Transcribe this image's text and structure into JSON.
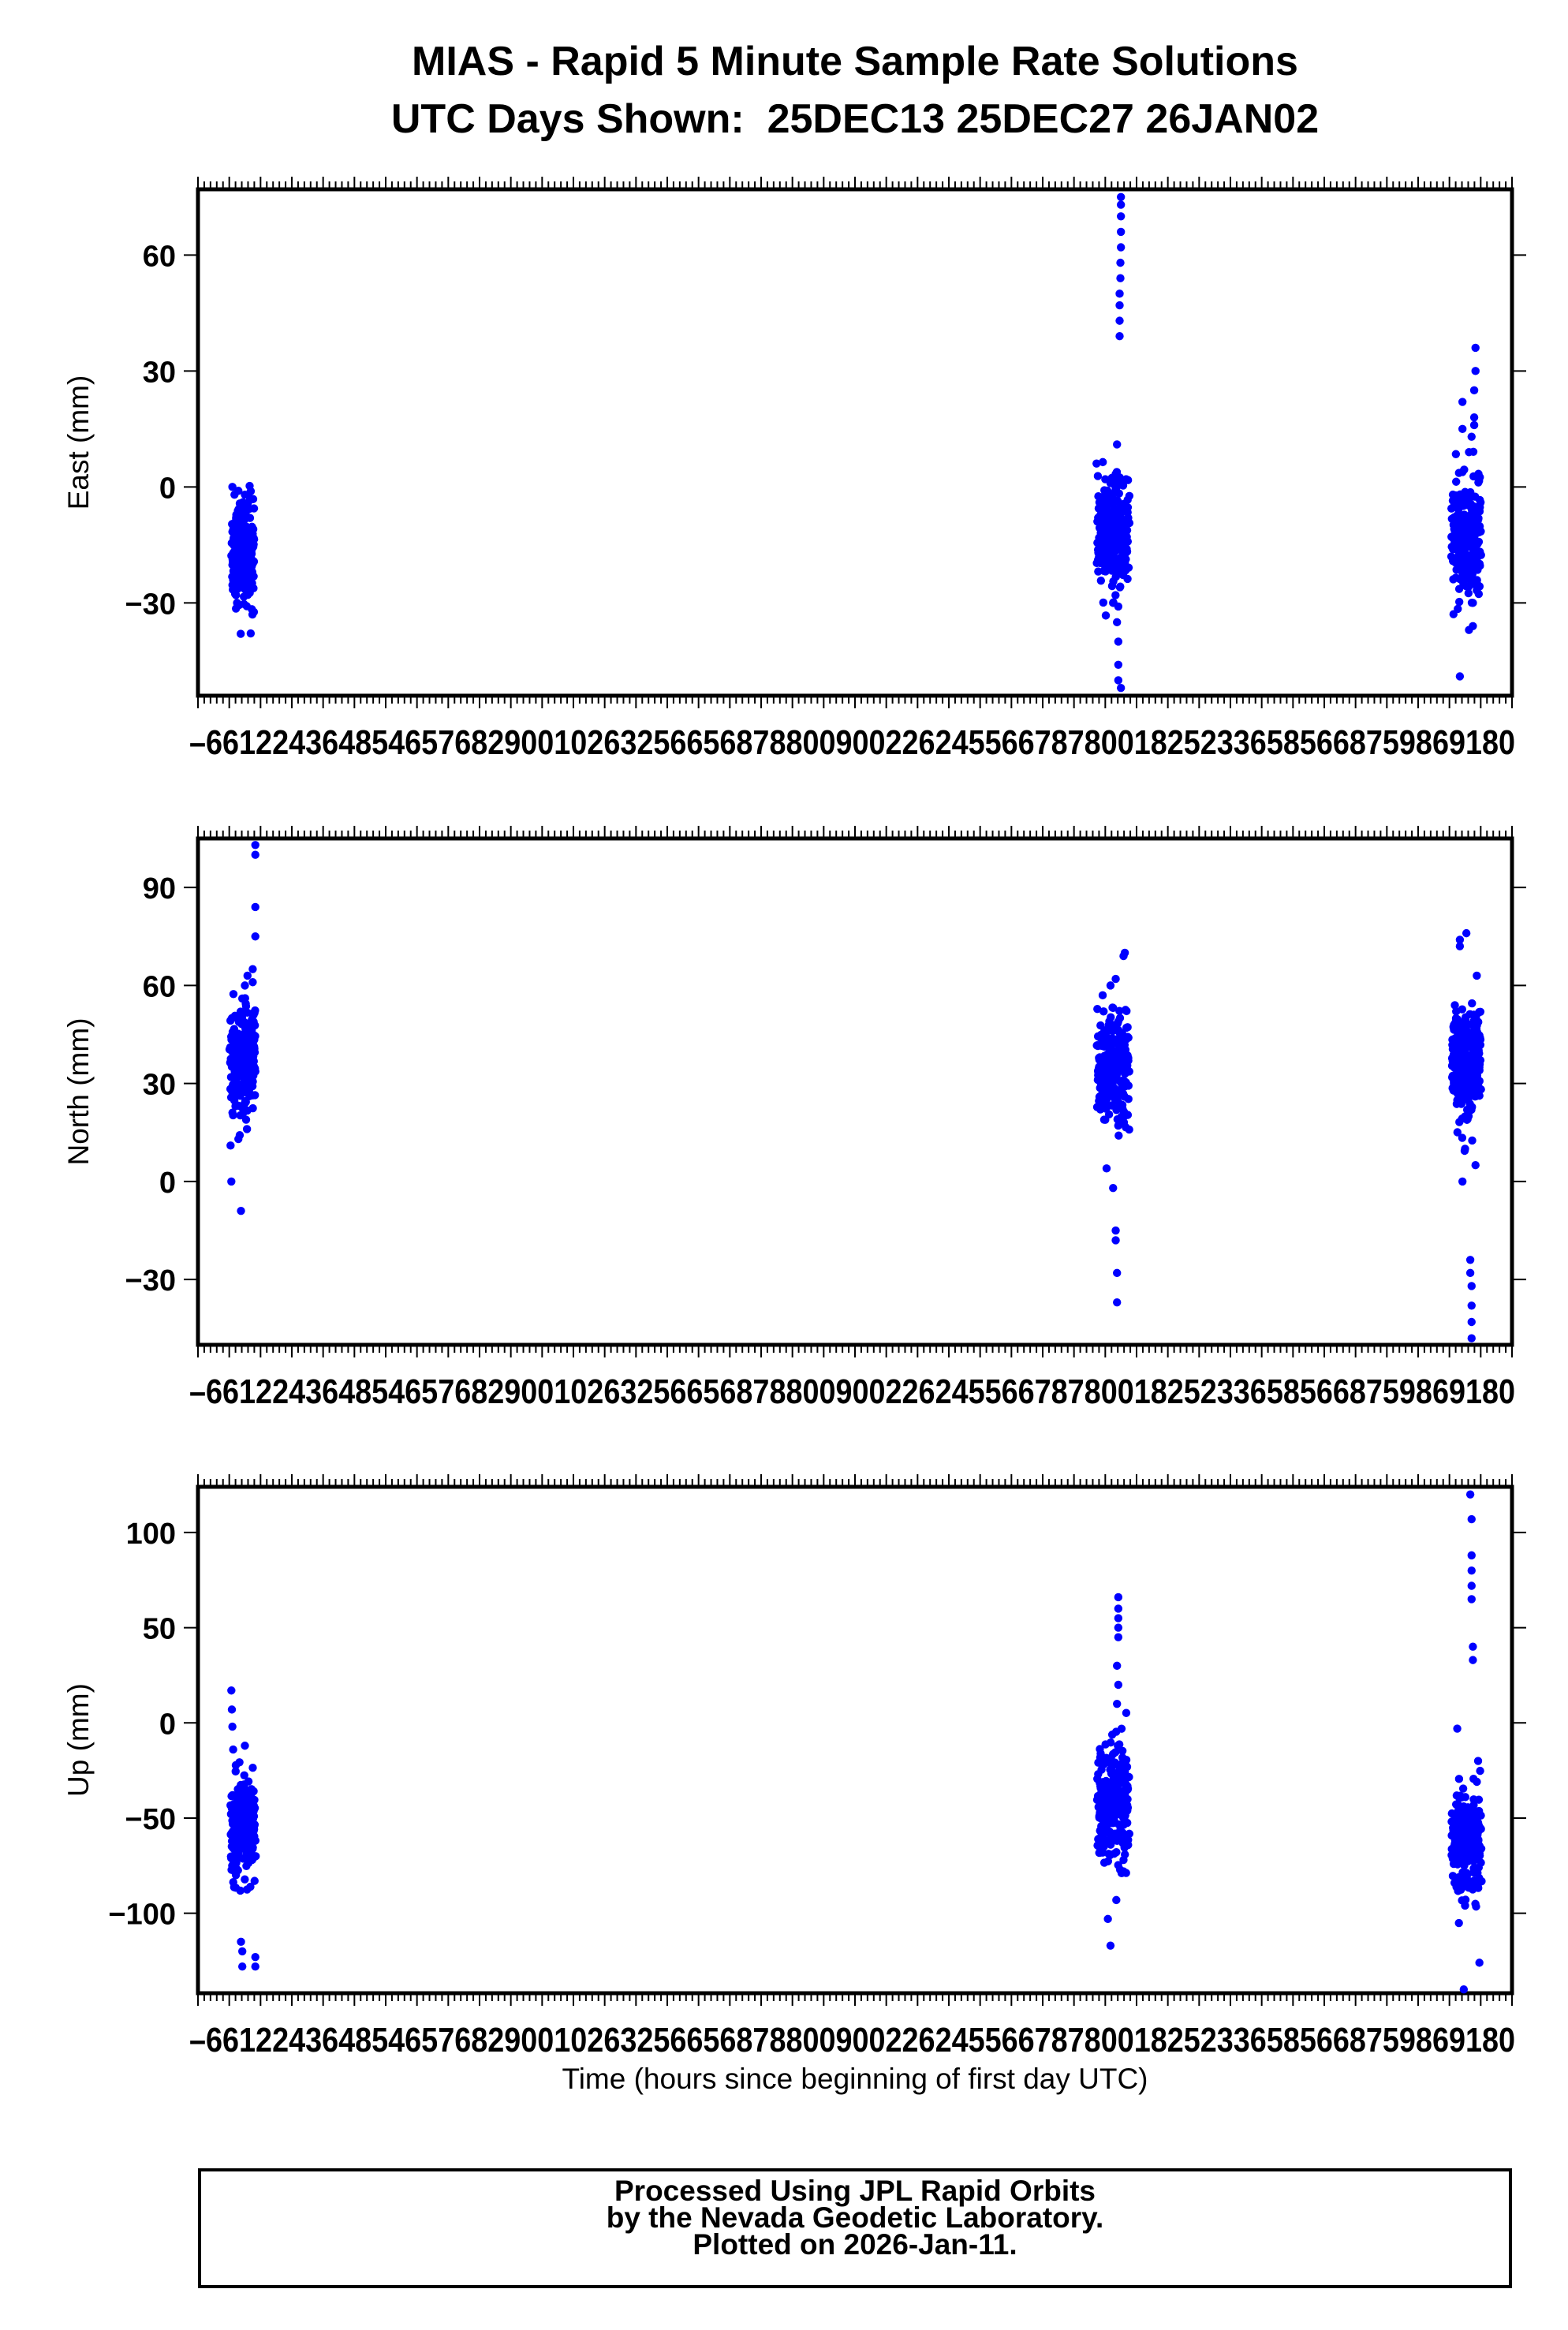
{
  "chart_data": {
    "title": "MIAS - Rapid 5 Minute Sample Rate Solutions",
    "subtitle": "UTC Days Shown:  25DEC13 25DEC27 26JAN02",
    "xlabel": "Time (hours since beginning of first day UTC)",
    "x_tick_labels": "–6612243648546576829001026325665687880090022624556678780018252336585668759869180",
    "panels": [
      {
        "type": "scatter",
        "ylabel": "East (mm)",
        "yticks": [
          60,
          30,
          0,
          -30
        ],
        "ylim": [
          -54,
          77
        ],
        "color": "#0000ff",
        "clusters": [
          {
            "series": "25DEC13",
            "x_range": [
              1.0,
              9.5
            ],
            "center": -17,
            "spread": 6,
            "n": 260,
            "points": [
              [
                1.2,
                0
              ],
              [
                2.0,
                -2
              ],
              [
                3.5,
                -1
              ],
              [
                6.0,
                -2
              ],
              [
                8.0,
                -3
              ],
              [
                4.4,
                -38
              ],
              [
                3.0,
                -30
              ],
              [
                8.9,
                -33
              ]
            ]
          },
          {
            "series": "25DEC27",
            "x_range": [
              333,
              345
            ],
            "center": -13,
            "spread": 7,
            "n": 250,
            "points": [
              [
                336,
                2
              ],
              [
                338,
                1
              ],
              [
                340.5,
                11
              ],
              [
                342,
                1
              ],
              [
                344,
                2
              ],
              [
                339,
                -30
              ],
              [
                340.5,
                -35
              ],
              [
                341,
                -40
              ],
              [
                341,
                -46
              ],
              [
                341,
                -50
              ],
              [
                342,
                -52
              ],
              [
                341.5,
                39
              ],
              [
                341.5,
                43
              ],
              [
                341.5,
                47
              ],
              [
                341.5,
                50
              ],
              [
                341.8,
                54
              ],
              [
                341.8,
                58
              ],
              [
                342,
                62
              ],
              [
                342,
                66
              ],
              [
                342,
                70
              ],
              [
                342,
                73
              ],
              [
                342,
                75
              ]
            ]
          },
          {
            "series": "26JAN02",
            "x_range": [
              469,
              480
            ],
            "center": -13,
            "spread": 7,
            "n": 270,
            "points": [
              [
                472,
                -49
              ],
              [
                475.5,
                -37
              ],
              [
                477,
                -36
              ],
              [
                477,
                -30
              ],
              [
                473,
                15
              ],
              [
                473,
                22
              ],
              [
                475.5,
                9
              ],
              [
                476.5,
                13
              ],
              [
                477.5,
                16
              ],
              [
                477.5,
                18
              ],
              [
                477.5,
                25
              ],
              [
                478,
                30
              ],
              [
                478,
                36
              ]
            ]
          }
        ]
      },
      {
        "type": "scatter",
        "ylabel": "North (mm)",
        "yticks": [
          90,
          60,
          30,
          0,
          -30
        ],
        "ylim": [
          -50,
          105
        ],
        "color": "#0000ff",
        "clusters": [
          {
            "series": "25DEC13",
            "x_range": [
              0.5,
              10
            ],
            "center": 37,
            "spread": 8,
            "n": 280,
            "points": [
              [
                0.5,
                11
              ],
              [
                0.8,
                0
              ],
              [
                4.5,
                -9
              ],
              [
                3.5,
                13
              ],
              [
                5.0,
                56
              ],
              [
                6.0,
                60
              ],
              [
                7.0,
                63
              ],
              [
                9.0,
                61
              ],
              [
                9.0,
                65
              ],
              [
                10.0,
                75
              ],
              [
                10.0,
                84
              ],
              [
                10.0,
                100
              ],
              [
                10.0,
                103
              ]
            ]
          },
          {
            "series": "25DEC27",
            "x_range": [
              333,
              345
            ],
            "center": 35,
            "spread": 8,
            "n": 260,
            "points": [
              [
                335,
                57
              ],
              [
                338,
                60
              ],
              [
                340,
                62
              ],
              [
                343,
                69
              ],
              [
                343.5,
                70
              ],
              [
                336.5,
                4
              ],
              [
                339,
                -2
              ],
              [
                340,
                -15
              ],
              [
                340,
                -18
              ],
              [
                340.5,
                -28
              ],
              [
                340.5,
                -37
              ]
            ]
          },
          {
            "series": "26JAN02",
            "x_range": [
              469,
              480
            ],
            "center": 36,
            "spread": 8,
            "n": 270,
            "points": [
              [
                472,
                74
              ],
              [
                472,
                72
              ],
              [
                474.5,
                76
              ],
              [
                473,
                0
              ],
              [
                474,
                10
              ],
              [
                478,
                5
              ],
              [
                478.5,
                63
              ],
              [
                476,
                -24
              ],
              [
                476,
                -28
              ],
              [
                476.5,
                -32
              ],
              [
                476.5,
                -38
              ],
              [
                476.5,
                -43
              ],
              [
                476.5,
                -48
              ]
            ]
          }
        ]
      },
      {
        "type": "scatter",
        "ylabel": "Up (mm)",
        "yticks": [
          100,
          50,
          0,
          -50,
          -100
        ],
        "ylim": [
          -142,
          124
        ],
        "color": "#0000ff",
        "clusters": [
          {
            "series": "25DEC13",
            "x_range": [
              0.8,
              10
            ],
            "center": -56,
            "spread": 13,
            "n": 270,
            "points": [
              [
                0.8,
                17
              ],
              [
                1.0,
                7
              ],
              [
                1.2,
                -2
              ],
              [
                1.5,
                -14
              ],
              [
                6.0,
                -12
              ],
              [
                4.5,
                -115
              ],
              [
                5.0,
                -120
              ],
              [
                5.0,
                -128
              ],
              [
                10.0,
                -123
              ],
              [
                10.0,
                -128
              ]
            ]
          },
          {
            "series": "25DEC27",
            "x_range": [
              333,
              345
            ],
            "center": -45,
            "spread": 16,
            "n": 260,
            "points": [
              [
                338,
                -117
              ],
              [
                337,
                -103
              ],
              [
                341,
                66
              ],
              [
                341,
                60
              ],
              [
                341,
                55
              ],
              [
                341,
                50
              ],
              [
                341,
                45
              ],
              [
                340.5,
                30
              ],
              [
                341,
                20
              ],
              [
                340.5,
                10
              ],
              [
                343,
                -72
              ],
              [
                343,
                -78
              ]
            ]
          },
          {
            "series": "26JAN02",
            "x_range": [
              469,
              480
            ],
            "center": -62,
            "spread": 13,
            "n": 270,
            "points": [
              [
                471,
                -3
              ],
              [
                473.5,
                -140
              ],
              [
                476,
                120
              ],
              [
                476.5,
                107
              ],
              [
                476.5,
                88
              ],
              [
                476.5,
                80
              ],
              [
                476.5,
                72
              ],
              [
                476.5,
                65
              ],
              [
                477,
                40
              ],
              [
                477,
                33
              ],
              [
                479,
                -20
              ],
              [
                479.5,
                -126
              ]
            ]
          }
        ]
      }
    ],
    "xlim": [
      -12,
      492
    ],
    "grid": false
  },
  "footer": {
    "line1": "Processed Using JPL Rapid Orbits",
    "line2": "by the Nevada Geodetic Laboratory.",
    "line3": "Plotted on 2026-Jan-11."
  }
}
